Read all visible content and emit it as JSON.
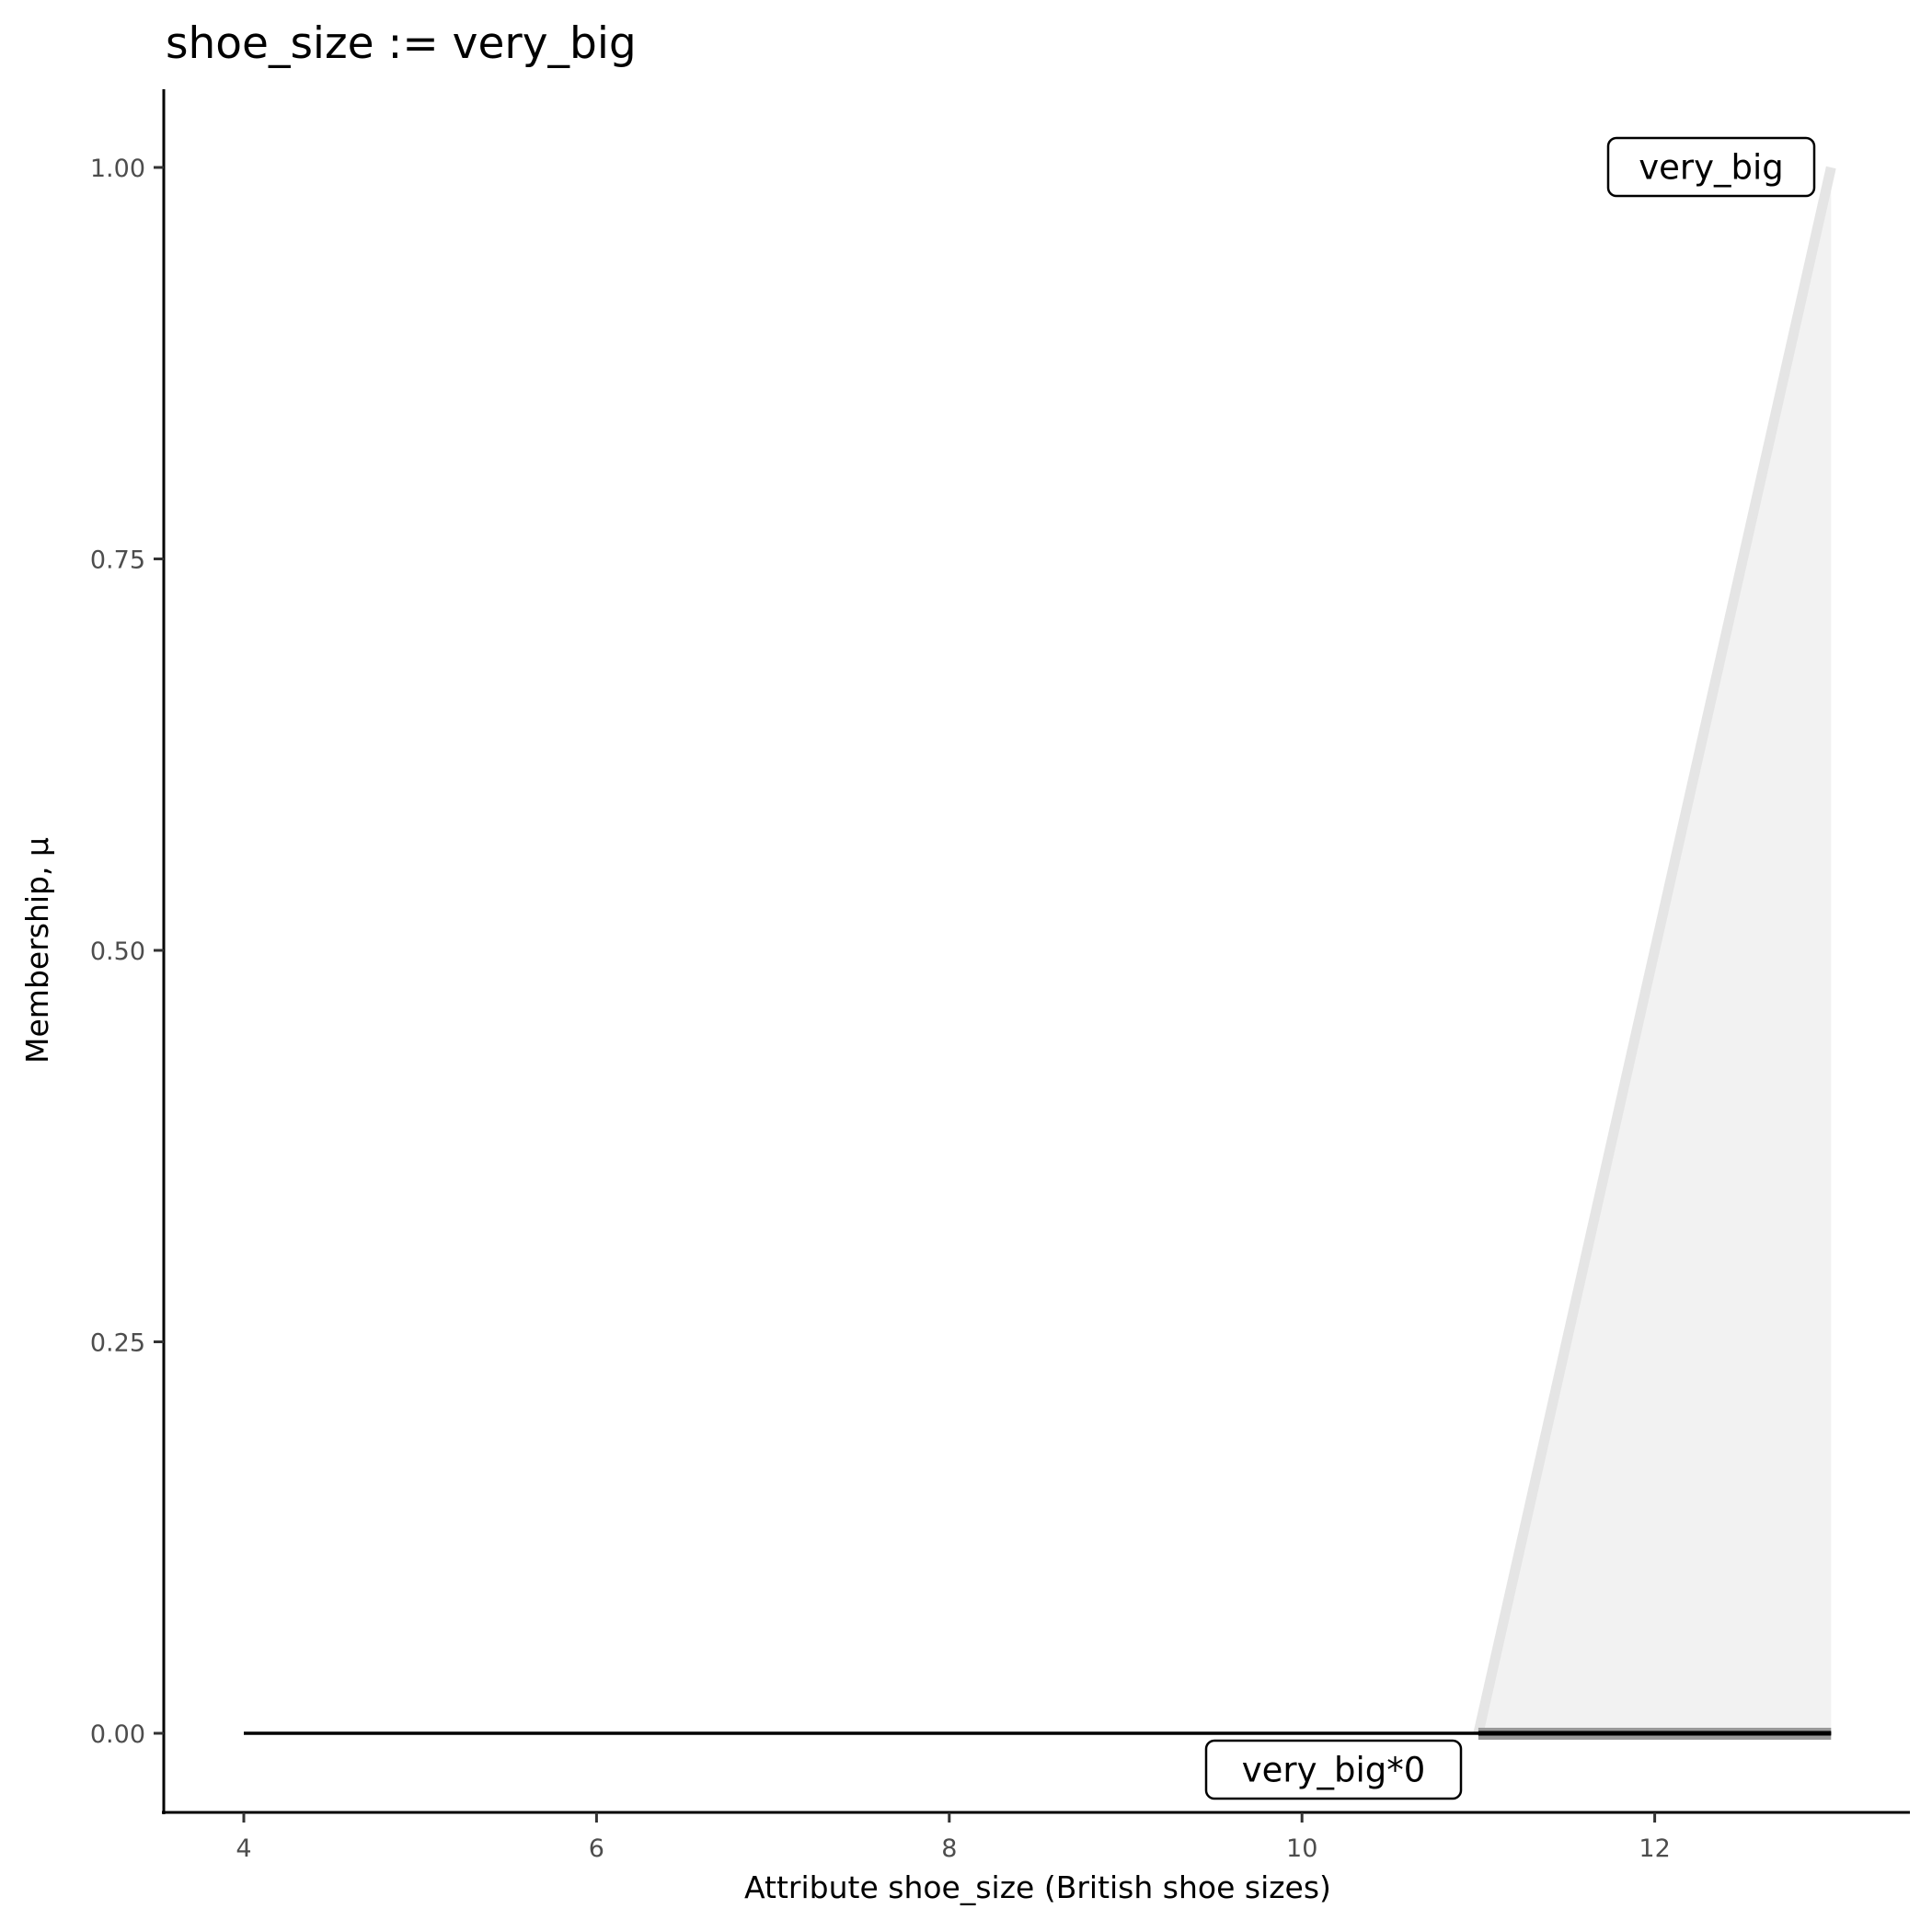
{
  "chart_data": {
    "type": "area",
    "title": "shoe_size := very_big",
    "xlabel": "Attribute shoe_size (British shoe sizes)",
    "ylabel": "Membership, μ",
    "xlim": [
      3.5,
      13.7
    ],
    "ylim": [
      -0.05,
      1.05
    ],
    "x_ticks": [
      4,
      6,
      8,
      10,
      12
    ],
    "x_tick_labels": [
      "4",
      "6",
      "8",
      "10",
      "12"
    ],
    "y_ticks": [
      0,
      0.25,
      0.5,
      0.75,
      1
    ],
    "y_tick_labels": [
      "0.00",
      "0.25",
      "0.50",
      "0.75",
      "1.00"
    ],
    "grid": false,
    "series": [
      {
        "name": "very_big",
        "x": [
          11,
          13
        ],
        "y": [
          0,
          1
        ],
        "fill": "#f2f2f2",
        "line": "#e5e5e5"
      },
      {
        "name": "very_big*0",
        "x": [
          4,
          13
        ],
        "y": [
          0,
          0
        ],
        "line": "#000000"
      }
    ],
    "annotations": [
      {
        "text": "very_big",
        "x": 12.3,
        "y": 1.0
      },
      {
        "text": "very_big*0",
        "x": 10.3,
        "y": -0.025
      }
    ]
  }
}
